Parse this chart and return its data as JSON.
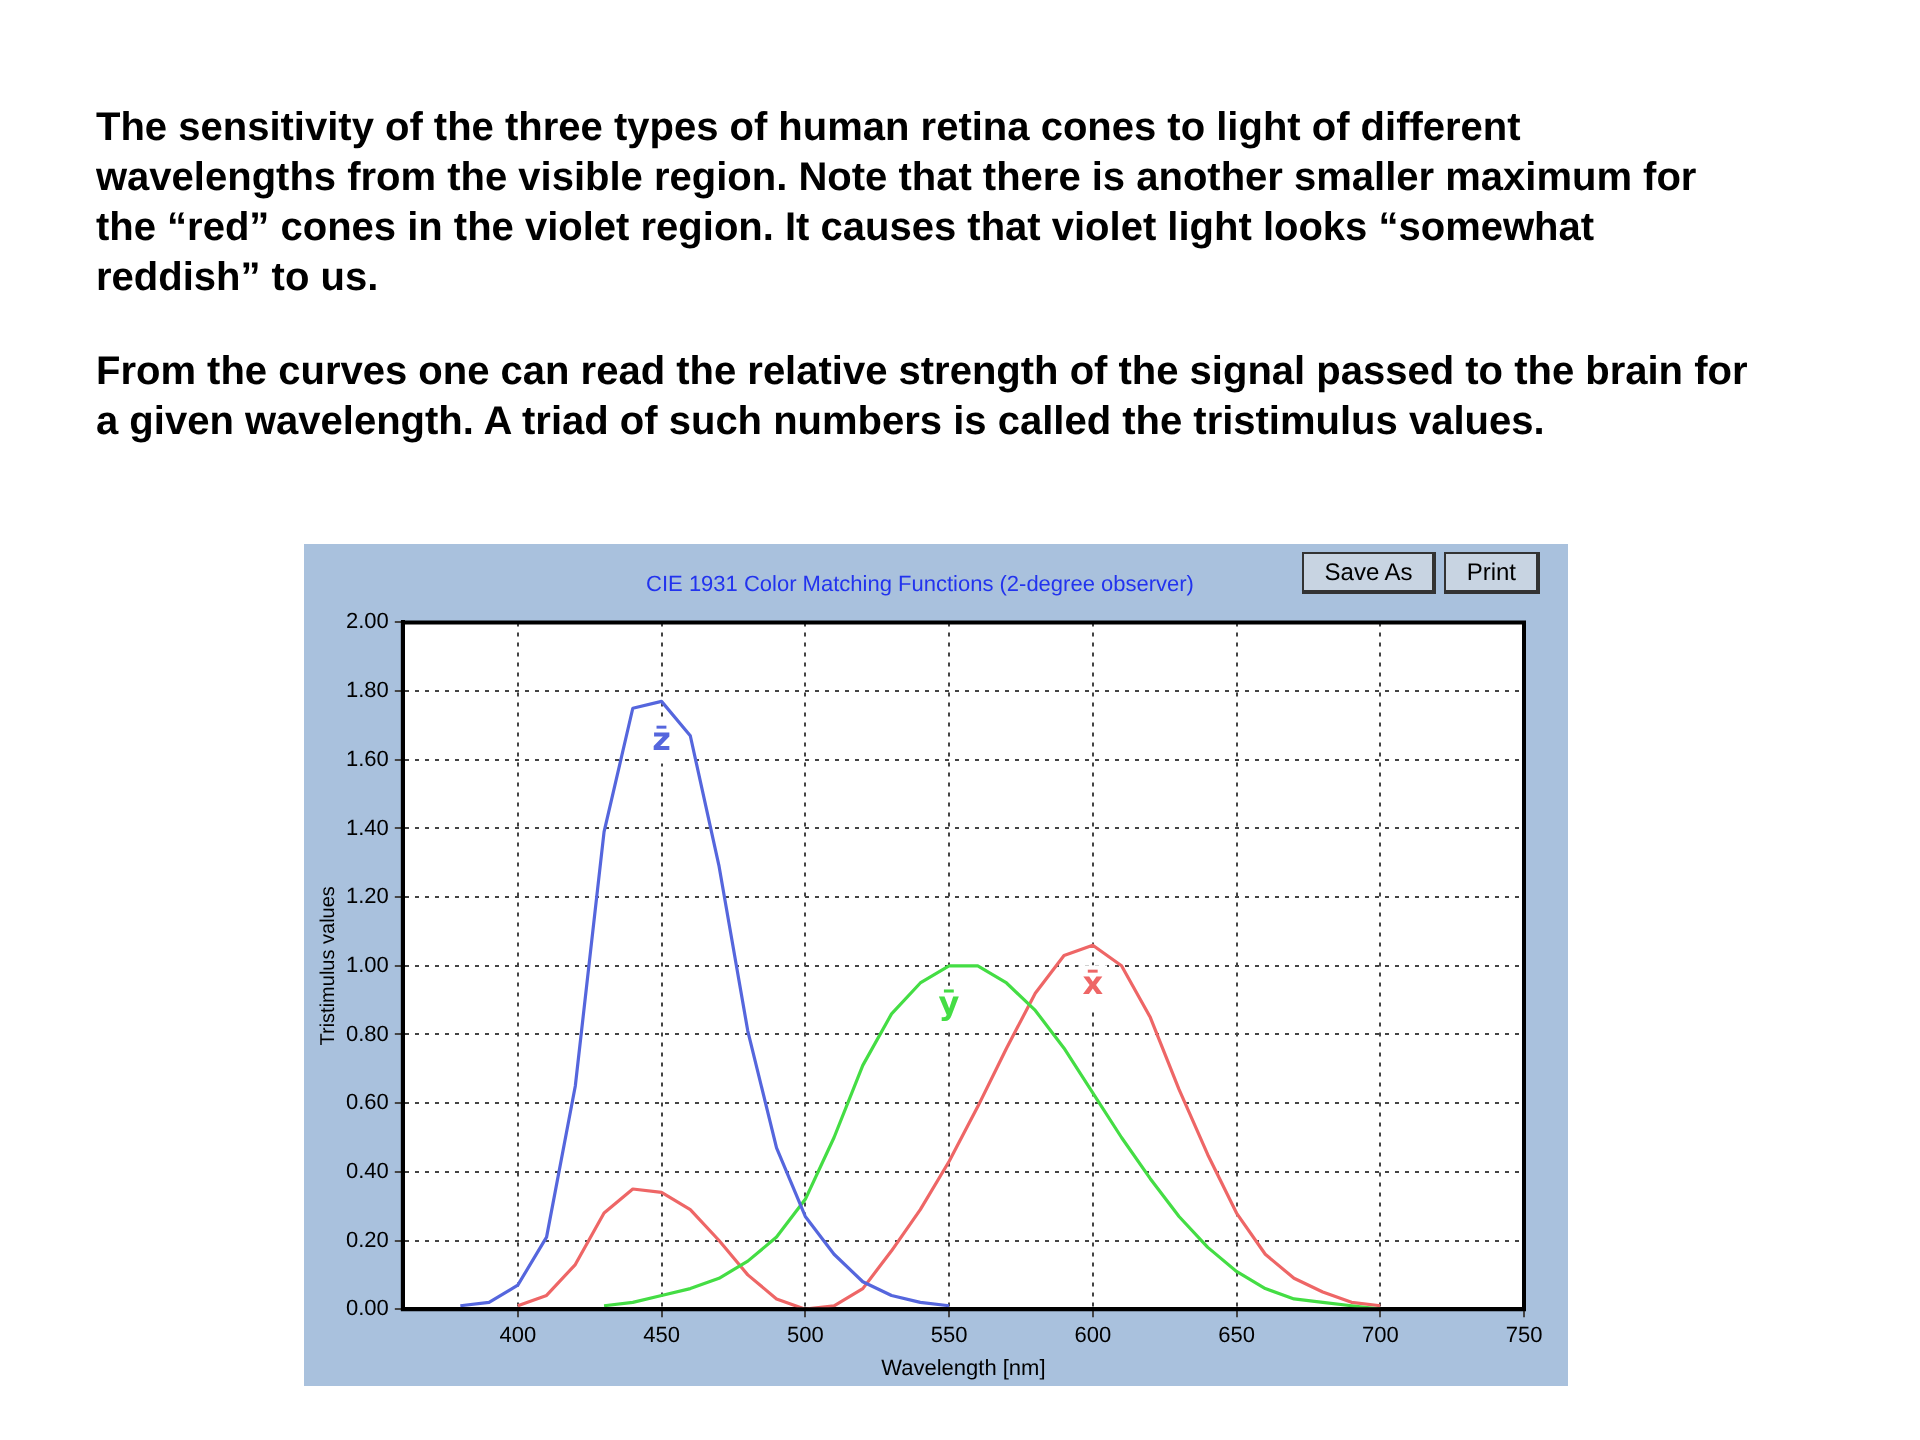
{
  "chart_data": {
    "type": "line",
    "title": "CIE 1931 Color Matching Functions (2-degree observer)",
    "xlabel": "Wavelength [nm]",
    "ylabel": "Tristimulus values",
    "annotations": [
      "The sensitivity of the three types of human retina cones to light of different wavelengths from the visible region. Note that there is another  smaller maximum for the “red” cones in the violet region. It causes that violet light looks “somewhat reddish” to us.",
      "From the curves one can read  the relative strength of the signal passed to the brain for a given wavelength. A triad of such numbers is called the tristimulus values.",
      "Save As",
      "Print"
    ],
    "xlim": [
      360,
      750
    ],
    "xticks": [
      400,
      450,
      500,
      550,
      600,
      650,
      700,
      750
    ],
    "ylim": [
      0,
      2
    ],
    "yticks": [
      {
        "value": 0,
        "label": "0.00"
      },
      {
        "value": 0.2,
        "label": "0.20"
      },
      {
        "value": 0.4,
        "label": "0.40"
      },
      {
        "value": 0.6,
        "label": "0.60"
      },
      {
        "value": 0.8,
        "label": "0.80"
      },
      {
        "value": 1,
        "label": "1.00"
      },
      {
        "value": 1.2,
        "label": "1.20"
      },
      {
        "value": 1.4,
        "label": "1.40"
      },
      {
        "value": 1.6,
        "label": "1.60"
      },
      {
        "value": 1.8,
        "label": "1.80"
      },
      {
        "value": 2,
        "label": "2.00"
      }
    ],
    "grid": true,
    "legend": false,
    "marker": "none",
    "line_style": "solid",
    "series": [
      {
        "name": "z̄",
        "color": "#5566dd",
        "x": [
          380,
          390,
          400,
          410,
          420,
          430,
          440,
          450,
          460,
          470,
          480,
          490,
          500,
          510,
          520,
          530,
          540,
          550
        ],
        "values": [
          0.01,
          0.02,
          0.07,
          0.21,
          0.65,
          1.39,
          1.75,
          1.77,
          1.67,
          1.29,
          0.81,
          0.47,
          0.27,
          0.16,
          0.08,
          0.04,
          0.02,
          0.01
        ]
      },
      {
        "name": "ȳ",
        "color": "#44dd44",
        "x": [
          430,
          440,
          450,
          460,
          470,
          480,
          490,
          500,
          510,
          520,
          530,
          540,
          550,
          560,
          570,
          580,
          590,
          600,
          610,
          620,
          630,
          640,
          650,
          660,
          670,
          680,
          690,
          700
        ],
        "values": [
          0.01,
          0.02,
          0.04,
          0.06,
          0.09,
          0.14,
          0.21,
          0.32,
          0.5,
          0.71,
          0.86,
          0.95,
          1.0,
          1.0,
          0.95,
          0.87,
          0.76,
          0.63,
          0.5,
          0.38,
          0.27,
          0.18,
          0.11,
          0.06,
          0.03,
          0.02,
          0.01,
          0.0
        ]
      },
      {
        "name": "x̄",
        "color": "#ee6666",
        "x": [
          400,
          410,
          420,
          430,
          440,
          450,
          460,
          470,
          480,
          490,
          500,
          510,
          520,
          530,
          540,
          550,
          560,
          570,
          580,
          590,
          600,
          610,
          620,
          630,
          640,
          650,
          660,
          670,
          680,
          690,
          700
        ],
        "values": [
          0.01,
          0.04,
          0.13,
          0.28,
          0.35,
          0.34,
          0.29,
          0.2,
          0.1,
          0.03,
          0.0,
          0.01,
          0.06,
          0.17,
          0.29,
          0.43,
          0.59,
          0.76,
          0.92,
          1.03,
          1.06,
          1.0,
          0.85,
          0.64,
          0.45,
          0.28,
          0.16,
          0.09,
          0.05,
          0.02,
          0.01
        ]
      }
    ]
  }
}
